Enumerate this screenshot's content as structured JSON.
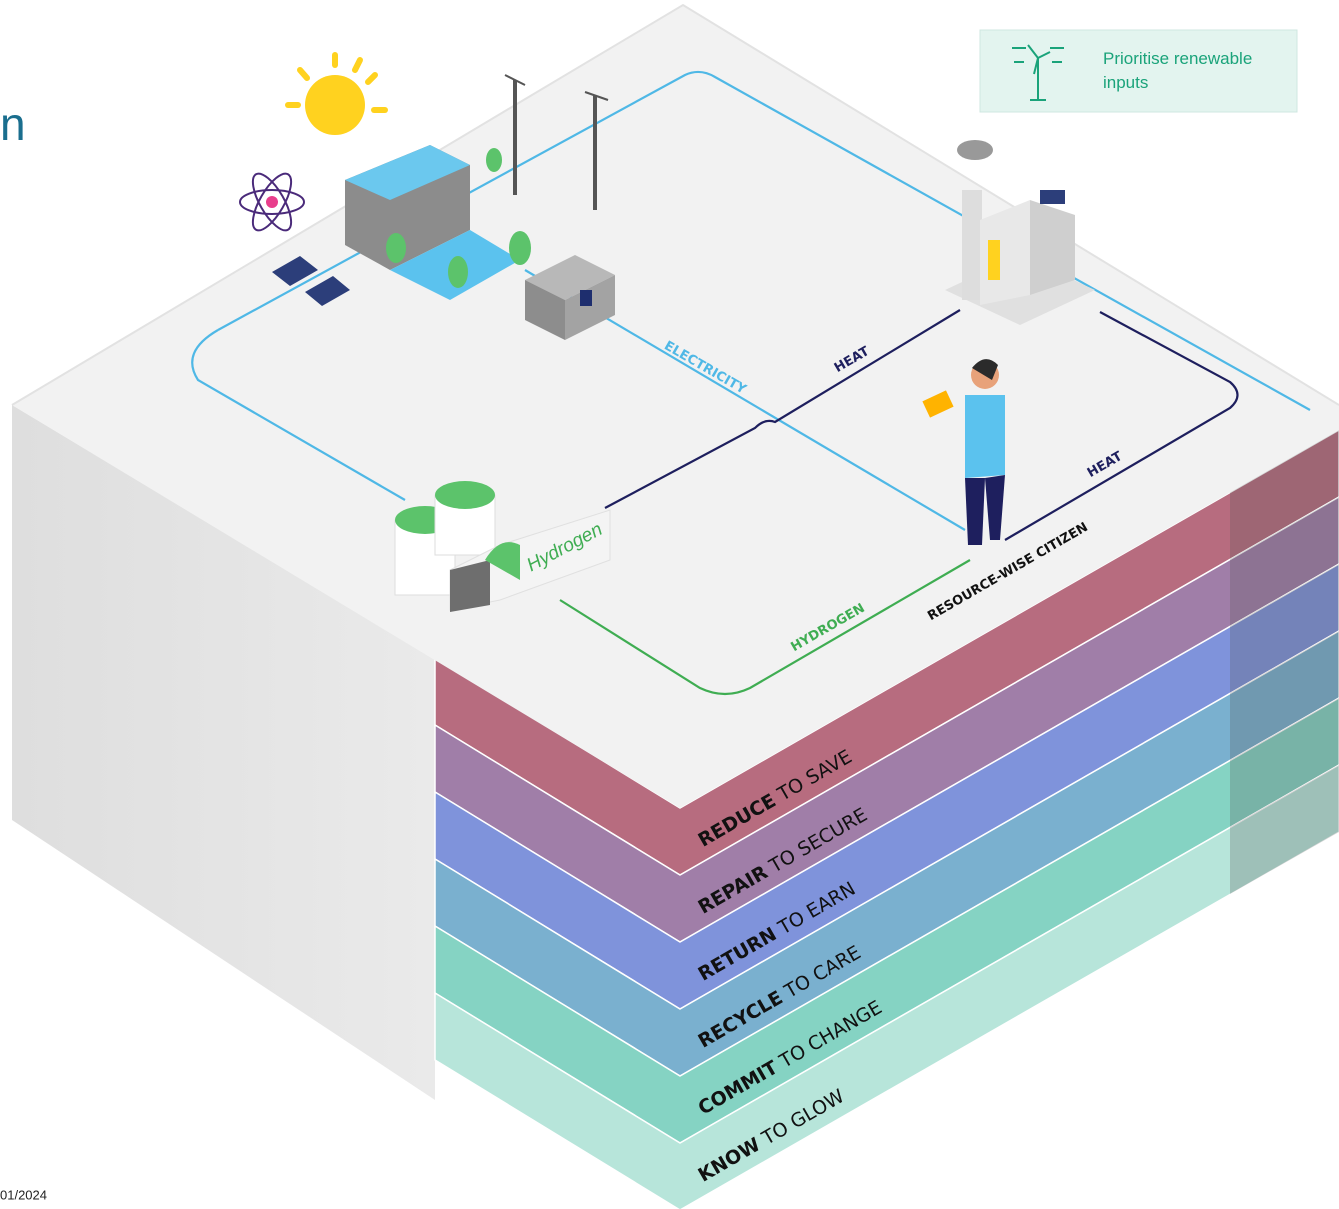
{
  "header": {
    "title": "n",
    "date": "01/2024"
  },
  "callout": {
    "text": "Prioritise renewable inputs"
  },
  "flows": {
    "electricity": "ELECTRICITY",
    "heat_top": "HEAT",
    "heat_right": "HEAT",
    "hydrogen": "HYDROGEN"
  },
  "nodes": {
    "hydrogen_tank": "Hydrogen",
    "citizen": "RESOURCE-WISE CITIZEN"
  },
  "layers": [
    {
      "verb": "REDUCE",
      "rest": "TO SAVE"
    },
    {
      "verb": "REPAIR",
      "rest": "TO SECURE"
    },
    {
      "verb": "RETURN",
      "rest": "TO EARN"
    },
    {
      "verb": "RECYCLE",
      "rest": "TO CARE"
    },
    {
      "verb": "COMMIT",
      "rest": "TO CHANGE"
    },
    {
      "verb": "KNOW",
      "rest": "TO GLOW"
    }
  ]
}
